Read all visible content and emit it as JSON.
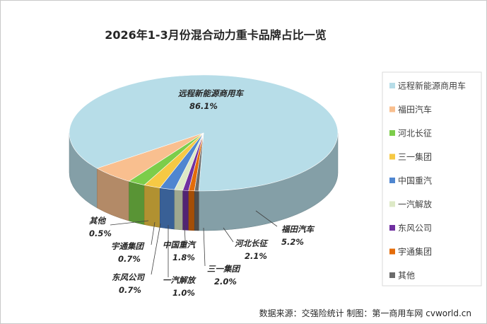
{
  "chart_data": {
    "type": "pie",
    "title": "2026年1-3月份混合动力重卡品牌占比一览",
    "legend_position": "right",
    "source": "数据来源：交强险统计  制图：第一商用车网 cvworld.cn",
    "slices": [
      {
        "name": "远程新能源商用车",
        "value": 86.1,
        "label": "86.1%",
        "color": "#b7dde8"
      },
      {
        "name": "福田汽车",
        "value": 5.2,
        "label": "5.2%",
        "color": "#f9bf8f"
      },
      {
        "name": "河北长征",
        "value": 2.1,
        "label": "2.1%",
        "color": "#7ccd4a"
      },
      {
        "name": "三一集团",
        "value": 2.0,
        "label": "2.0%",
        "color": "#f6c944"
      },
      {
        "name": "中国重汽",
        "value": 1.8,
        "label": "1.8%",
        "color": "#4f86d0"
      },
      {
        "name": "一汽解放",
        "value": 1.0,
        "label": "1.0%",
        "color": "#dde9c6"
      },
      {
        "name": "东风公司",
        "value": 0.7,
        "label": "0.7%",
        "color": "#7030a0"
      },
      {
        "name": "宇通集团",
        "value": 0.7,
        "label": "0.7%",
        "color": "#e46c0a"
      },
      {
        "name": "其他",
        "value": 0.5,
        "label": "0.5%",
        "color": "#6b6b6b"
      }
    ]
  }
}
